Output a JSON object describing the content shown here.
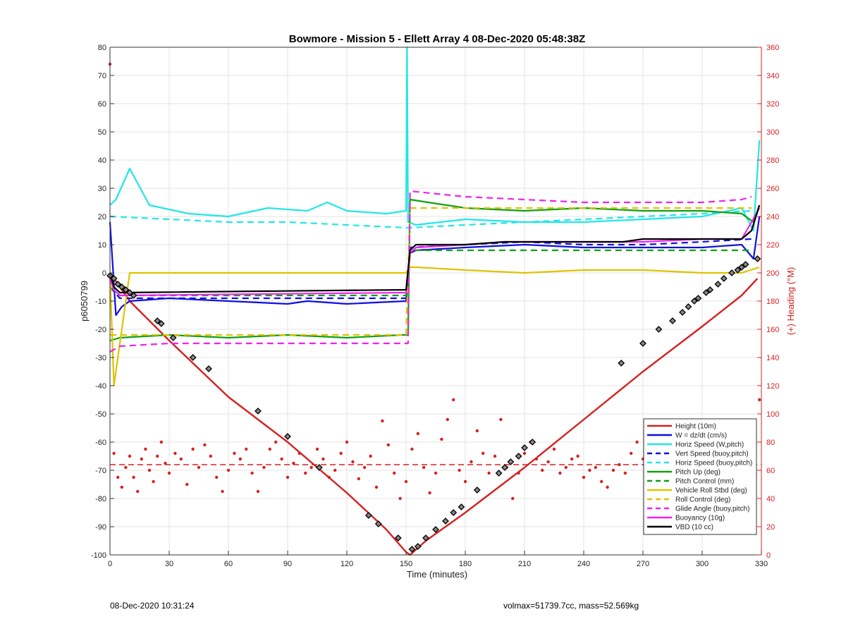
{
  "footer": {
    "timestamp": "08-Dec-2020 10:31:24",
    "stats": "volmax=51739.7cc, mass=52.569kg"
  },
  "chart_data": {
    "type": "line",
    "title": "Bowmore - Mission 5 - Ellett Array 4 08-Dec-2020 05:48:38Z",
    "xlabel": "Time (minutes)",
    "ylabel": "p6050799",
    "y2label": "(+) Heading (°M)",
    "xlim": [
      0,
      330
    ],
    "ylim": [
      -100,
      80
    ],
    "y2lim": [
      0,
      360
    ],
    "xticks": [
      0,
      30,
      60,
      90,
      120,
      150,
      180,
      210,
      240,
      270,
      300,
      330
    ],
    "yticks": [
      -100,
      -90,
      -80,
      -70,
      -60,
      -50,
      -40,
      -30,
      -20,
      -10,
      0,
      10,
      20,
      30,
      40,
      50,
      60,
      70,
      80
    ],
    "y2ticks": [
      0,
      20,
      40,
      60,
      80,
      100,
      120,
      140,
      160,
      180,
      200,
      220,
      240,
      260,
      280,
      300,
      320,
      340,
      360
    ],
    "grid": true,
    "legend_position": "lower-right",
    "heading_mean_deg": 64,
    "colors": {
      "red": "#d62020",
      "blue": "#1010dd",
      "cyan": "#22e6e6",
      "green": "#10a010",
      "yellow": "#e0c200",
      "magenta": "#ee22ee",
      "black": "#000000"
    },
    "series": [
      {
        "name": "Height (10m)",
        "color": "#d62020",
        "style": "solid",
        "x": [
          0,
          2,
          5,
          10,
          30,
          60,
          90,
          120,
          140,
          150,
          152,
          160,
          180,
          210,
          240,
          270,
          300,
          320,
          328
        ],
        "y": [
          0,
          -2,
          -5,
          -10,
          -24,
          -44,
          -60,
          -78,
          -91,
          -99,
          -100,
          -95,
          -85,
          -69,
          -52,
          -35,
          -19,
          -8,
          -2
        ]
      },
      {
        "name": "W = dz/dt (cm/s)",
        "color": "#1010dd",
        "style": "solid",
        "x": [
          0,
          3,
          6,
          10,
          30,
          60,
          90,
          100,
          120,
          150,
          152,
          155,
          180,
          210,
          240,
          270,
          300,
          320,
          326,
          329
        ],
        "y": [
          18,
          -15,
          -12,
          -10,
          -9,
          -10,
          -11,
          -10,
          -11,
          -10,
          7,
          8,
          9,
          10,
          9,
          9,
          9,
          10,
          5,
          20
        ]
      },
      {
        "name": "Horiz Speed (W,pitch)",
        "color": "#22e6e6",
        "style": "solid",
        "x": [
          0,
          3,
          10,
          20,
          40,
          60,
          80,
          100,
          110,
          120,
          140,
          150,
          150.5,
          151,
          155,
          180,
          210,
          240,
          270,
          300,
          320,
          326,
          329
        ],
        "y": [
          24,
          26,
          37,
          24,
          21,
          20,
          23,
          22,
          25,
          22,
          21,
          22,
          80,
          18,
          17,
          19,
          18,
          18,
          19,
          20,
          23,
          15,
          47
        ]
      },
      {
        "name": "Vert Speed (buoy,pitch)",
        "color": "#1010dd",
        "style": "dash",
        "x": [
          0,
          5,
          30,
          60,
          90,
          120,
          150,
          152,
          180,
          210,
          240,
          270,
          300,
          325
        ],
        "y": [
          -5,
          -9,
          -9,
          -9,
          -9,
          -9,
          -9,
          9,
          10,
          11,
          10,
          10,
          11,
          12
        ]
      },
      {
        "name": "Horiz Speed (buoy,pitch)",
        "color": "#22e6e6",
        "style": "dash",
        "x": [
          0,
          30,
          60,
          90,
          120,
          150,
          152,
          180,
          210,
          240,
          270,
          300,
          325
        ],
        "y": [
          20,
          19,
          18,
          18,
          17,
          16,
          16,
          17,
          18,
          19,
          20,
          21,
          22
        ]
      },
      {
        "name": "Pitch Up (deg)",
        "color": "#10a010",
        "style": "solid",
        "x": [
          0,
          5,
          30,
          60,
          90,
          120,
          148,
          151,
          152,
          180,
          210,
          240,
          270,
          300,
          320,
          326,
          329
        ],
        "y": [
          -24,
          -23,
          -22,
          -23,
          -22,
          -23,
          -22,
          -22,
          26,
          23,
          22,
          23,
          22,
          22,
          21,
          18,
          24
        ]
      },
      {
        "name": "Pitch Control (mm)",
        "color": "#10a010",
        "style": "dash",
        "x": [
          0,
          5,
          30,
          60,
          90,
          120,
          150,
          152,
          180,
          210,
          240,
          270,
          300,
          325
        ],
        "y": [
          -5,
          -8,
          -8,
          -8,
          -8,
          -8,
          -8,
          8,
          8,
          8,
          8,
          8,
          8,
          8
        ]
      },
      {
        "name": "Vehicle Roll Stbd (deg)",
        "color": "#e0c200",
        "style": "solid",
        "x": [
          0,
          2,
          10,
          30,
          60,
          90,
          120,
          150,
          152,
          155,
          180,
          210,
          240,
          270,
          300,
          320,
          329
        ],
        "y": [
          0,
          -40,
          0,
          0,
          0,
          0,
          0,
          0,
          2,
          2,
          1,
          0,
          1,
          1,
          0,
          0,
          2
        ]
      },
      {
        "name": "Roll Control (deg)",
        "color": "#e0c200",
        "style": "dash",
        "x": [
          0,
          10,
          30,
          60,
          90,
          120,
          150,
          152,
          180,
          210,
          240,
          270,
          300,
          325
        ],
        "y": [
          -22,
          -22,
          -22,
          -22,
          -22,
          -22,
          -22,
          23,
          23,
          23,
          23,
          23,
          23,
          23
        ]
      },
      {
        "name": "Glide Angle (buoy,pitch)",
        "color": "#ee22ee",
        "style": "dash",
        "x": [
          0,
          5,
          30,
          60,
          90,
          120,
          148,
          151,
          152,
          180,
          210,
          240,
          270,
          300,
          320,
          325
        ],
        "y": [
          -28,
          -26,
          -25,
          -25,
          -25,
          -25,
          -25,
          -25,
          29,
          27,
          26,
          25,
          25,
          25,
          26,
          27
        ]
      },
      {
        "name": "Buoyancy (10g)",
        "color": "#ee22ee",
        "style": "solid",
        "x": [
          0,
          2,
          5,
          150,
          152,
          155,
          180,
          200,
          220,
          260,
          270,
          300,
          320,
          325,
          329
        ],
        "y": [
          -2,
          -6,
          -8,
          -7,
          7,
          9,
          10,
          11,
          11,
          11,
          11,
          12,
          12,
          18,
          23
        ]
      },
      {
        "name": "VBD (10 cc)",
        "color": "#000000",
        "style": "solid",
        "x": [
          0,
          2,
          5,
          150,
          152,
          155,
          180,
          200,
          220,
          260,
          270,
          300,
          320,
          325,
          329
        ],
        "y": [
          0,
          -5,
          -7,
          -6,
          8,
          10,
          10,
          11,
          11,
          11,
          12,
          12,
          12,
          15,
          24
        ]
      }
    ],
    "heading_points_deg": {
      "t": [
        0,
        2,
        4,
        6,
        8,
        10,
        12,
        14,
        16,
        18,
        20,
        22,
        24,
        26,
        28,
        30,
        33,
        36,
        39,
        42,
        45,
        48,
        51,
        54,
        57,
        60,
        63,
        66,
        69,
        72,
        75,
        78,
        81,
        84,
        87,
        90,
        93,
        96,
        99,
        102,
        105,
        108,
        111,
        114,
        117,
        120,
        123,
        126,
        129,
        132,
        135,
        138,
        141,
        144,
        147,
        150,
        153,
        156,
        159,
        162,
        165,
        168,
        171,
        174,
        177,
        180,
        183,
        186,
        189,
        192,
        195,
        198,
        201,
        204,
        207,
        210,
        213,
        216,
        219,
        222,
        225,
        228,
        231,
        234,
        237,
        240,
        243,
        246,
        249,
        252,
        255,
        258,
        261,
        264,
        267,
        270,
        273,
        276,
        279,
        282,
        285,
        288,
        291,
        294,
        297,
        300,
        303,
        306,
        309,
        312,
        315,
        318,
        321,
        324,
        327,
        329
      ],
      "h": [
        348,
        72,
        55,
        48,
        62,
        70,
        55,
        45,
        68,
        75,
        60,
        52,
        70,
        80,
        65,
        58,
        72,
        68,
        50,
        75,
        62,
        78,
        70,
        55,
        45,
        60,
        72,
        68,
        75,
        58,
        45,
        62,
        75,
        80,
        68,
        55,
        65,
        72,
        58,
        62,
        75,
        68,
        55,
        60,
        72,
        80,
        66,
        54,
        62,
        70,
        48,
        95,
        78,
        58,
        40,
        52,
        75,
        86,
        62,
        44,
        58,
        82,
        96,
        110,
        60,
        52,
        66,
        88,
        72,
        58,
        70,
        96,
        62,
        40,
        58,
        72,
        80,
        68,
        60,
        66,
        75,
        58,
        62,
        68,
        70,
        55,
        60,
        62,
        52,
        48,
        60,
        64,
        58,
        72,
        80,
        68,
        56,
        62,
        75,
        82,
        68,
        58,
        70,
        76,
        62,
        66,
        58,
        45,
        70,
        80,
        62,
        54,
        72,
        66,
        58,
        110
      ]
    },
    "inflection_markers": {
      "t": [
        0,
        2,
        4,
        6,
        8,
        10,
        12,
        24,
        26,
        32,
        42,
        50,
        75,
        90,
        106,
        131,
        136,
        146,
        153,
        156,
        160,
        165,
        170,
        174,
        178,
        186,
        197,
        200,
        203,
        207,
        210,
        214,
        259,
        270,
        278,
        285,
        290,
        293,
        296,
        298,
        302,
        304,
        308,
        311,
        315,
        318,
        320,
        322,
        328
      ],
      "y": [
        -1,
        -2,
        -4,
        -5,
        -6,
        -7,
        -8,
        -17,
        -18,
        -23,
        -30,
        -34,
        -49,
        -58,
        -69,
        -86,
        -89,
        -94,
        -98,
        -97,
        -94,
        -91,
        -88,
        -85,
        -83,
        -77,
        -71,
        -69,
        -67,
        -65,
        -62,
        -60,
        -32,
        -25,
        -20,
        -17,
        -14,
        -12,
        -10,
        -9,
        -7,
        -6,
        -4,
        -2,
        0,
        1,
        2,
        3,
        5
      ]
    }
  }
}
